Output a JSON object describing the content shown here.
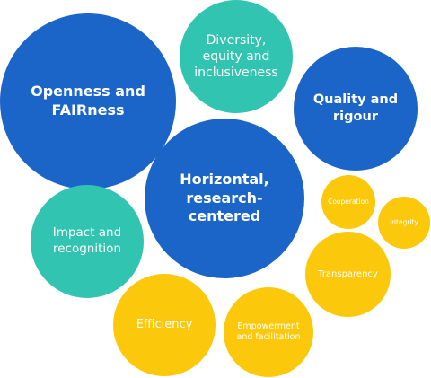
{
  "colors": {
    "dark_blue": "#1b64c8",
    "teal": "#31c4b1",
    "yellow": "#fcc80b",
    "text": "#ffffff"
  },
  "bubbles": [
    {
      "label": "Openness and FAIRness",
      "color": "#1b64c8",
      "bold": true
    },
    {
      "label": "Diversity, equity and inclusiveness",
      "color": "#31c4b1",
      "bold": false
    },
    {
      "label": "Quality and rigour",
      "color": "#1b64c8",
      "bold": true
    },
    {
      "label": "Horizontal, research-centered",
      "color": "#1b64c8",
      "bold": true
    },
    {
      "label": "Cooperation",
      "color": "#fcc80b",
      "bold": false
    },
    {
      "label": "Integrity",
      "color": "#fcc80b",
      "bold": false
    },
    {
      "label": "Impact and recognition",
      "color": "#31c4b1",
      "bold": false
    },
    {
      "label": "Transparency",
      "color": "#fcc80b",
      "bold": false
    },
    {
      "label": "Efficiency",
      "color": "#fcc80b",
      "bold": false
    },
    {
      "label": "Empowerment and facilitation",
      "color": "#fcc80b",
      "bold": false
    }
  ]
}
